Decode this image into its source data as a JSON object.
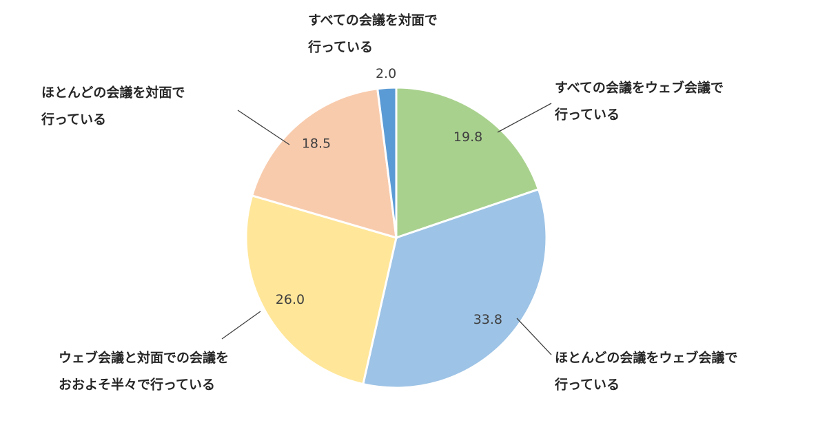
{
  "chart_data": {
    "type": "pie",
    "categories": [
      [
        "すべての会議をウェブ会議で",
        "行っている"
      ],
      [
        "ほとんどの会議をウェブ会議で",
        "行っている"
      ],
      [
        "ウェブ会議と対面での会議を",
        "おおよそ半々で行っている"
      ],
      [
        "ほとんどの会議を対面で",
        "行っている"
      ],
      [
        "すべての会議を対面で",
        "行っている"
      ]
    ],
    "values": [
      19.8,
      33.8,
      26.0,
      18.5,
      2.0
    ],
    "value_labels": [
      "19.8",
      "33.8",
      "26.0",
      "18.5",
      "2.0"
    ],
    "colors": [
      "#a9d18e",
      "#9dc3e6",
      "#ffe699",
      "#f8cbad",
      "#5b9bd5"
    ]
  }
}
